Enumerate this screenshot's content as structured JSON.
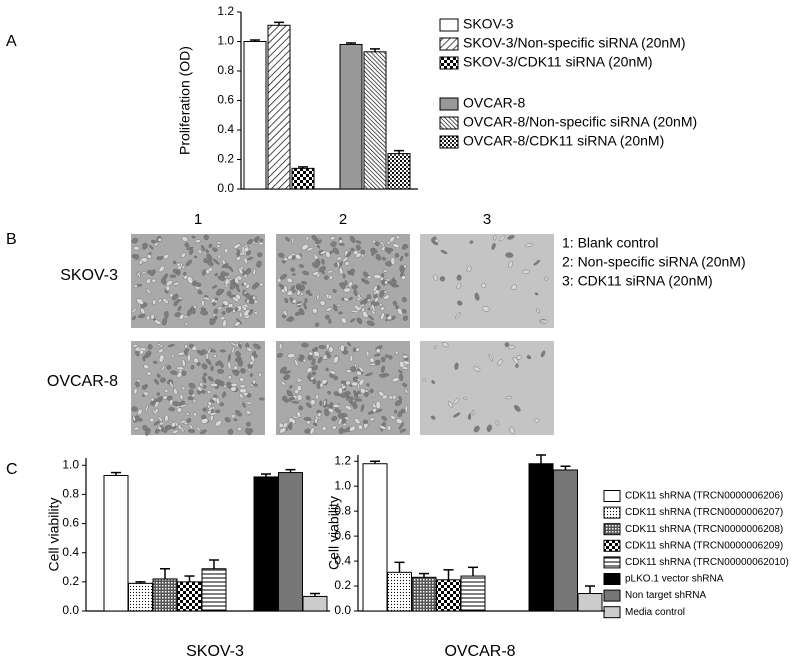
{
  "panel_labels": [
    "A",
    "B",
    "C"
  ],
  "panel_b": {
    "columns": [
      "1",
      "2",
      "3"
    ],
    "rows": [
      "SKOV-3",
      "OVCAR-8"
    ],
    "legend": [
      "1: Blank control",
      "2: Non-specific siRNA (20nM)",
      "3: CDK11 siRNA (20nM)"
    ]
  },
  "chart_data": [
    {
      "type": "bar",
      "ylabel": "Proliferation (OD)",
      "ylim": [
        0,
        1.2
      ],
      "yticks": [
        {
          "value": 0,
          "label": "0.0"
        },
        {
          "value": 0.2,
          "label": "0.2"
        },
        {
          "value": 0.4,
          "label": "0.4"
        },
        {
          "value": 0.6,
          "label": "0.6"
        },
        {
          "value": 0.8,
          "label": "0.8"
        },
        {
          "value": 1,
          "label": "1.0"
        },
        {
          "value": 1.2,
          "label": "1.2"
        }
      ],
      "series": [
        {
          "name": "SKOV-3",
          "color": "white",
          "values": [
            1.0
          ],
          "errors": [
            0.01
          ]
        },
        {
          "name": "SKOV-3/Non-specific siRNA (20nM)",
          "color": "hatch",
          "values": [
            1.11
          ],
          "errors": [
            0.02
          ]
        },
        {
          "name": "SKOV-3/CDK11 siRNA (20nM)",
          "color": "checker",
          "values": [
            0.14
          ],
          "errors": [
            0.01
          ]
        },
        {
          "name": "OVCAR-8",
          "color": "#999999",
          "values": [
            0.98
          ],
          "errors": [
            0.01
          ]
        },
        {
          "name": "OVCAR-8/Non-specific siRNA (20nM)",
          "color": "hatch2",
          "values": [
            0.93
          ],
          "errors": [
            0.02
          ]
        },
        {
          "name": "OVCAR-8/CDK11 siRNA (20nM)",
          "color": "checker2",
          "values": [
            0.24
          ],
          "errors": [
            0.02
          ]
        }
      ]
    },
    {
      "type": "bar",
      "ylabel": "Cell viability",
      "xlabel": "SKOV-3",
      "ylim": [
        0,
        1.05
      ],
      "yticks": [
        {
          "value": 0,
          "label": "0.0"
        },
        {
          "value": 0.2,
          "label": "0.2"
        },
        {
          "value": 0.4,
          "label": "0.4"
        },
        {
          "value": 0.6,
          "label": "0.6"
        },
        {
          "value": 0.8,
          "label": "0.8"
        },
        {
          "value": 1,
          "label": "1.0"
        }
      ],
      "series": [
        {
          "name": "CDK11 shRNA (TRCN0000006206)",
          "color": "white",
          "values": [
            0.93
          ],
          "errors": [
            0.02
          ]
        },
        {
          "name": "CDK11 shRNA (TRCN0000006207)",
          "color": "dots",
          "values": [
            0.19
          ],
          "errors": [
            0.01
          ]
        },
        {
          "name": "CDK11 shRNA (TRCN0000006208)",
          "color": "cross",
          "values": [
            0.22
          ],
          "errors": [
            0.07
          ]
        },
        {
          "name": "CDK11 shRNA (TRCN0000006209)",
          "color": "checker",
          "values": [
            0.2
          ],
          "errors": [
            0.04
          ]
        },
        {
          "name": "CDK11 shRNA (TRCN00000062010)",
          "color": "hlines",
          "values": [
            0.29
          ],
          "errors": [
            0.06
          ]
        },
        {
          "name": "pLKO.1 vector  shRNA",
          "color": "#000000",
          "values": [
            0.92
          ],
          "errors": [
            0.02
          ]
        },
        {
          "name": "Non target shRNA",
          "color": "#777777",
          "values": [
            0.95
          ],
          "errors": [
            0.02
          ]
        },
        {
          "name": "Media control",
          "color": "#cccccc",
          "values": [
            0.1
          ],
          "errors": [
            0.02
          ]
        }
      ]
    },
    {
      "type": "bar",
      "ylabel": "Cell viability",
      "xlabel": "OVCAR-8",
      "ylim": [
        0,
        1.25
      ],
      "yticks": [
        {
          "value": 0,
          "label": "0.0"
        },
        {
          "value": 0.2,
          "label": "0.2"
        },
        {
          "value": 0.4,
          "label": "0.4"
        },
        {
          "value": 0.6,
          "label": "0.6"
        },
        {
          "value": 0.8,
          "label": "0.8"
        },
        {
          "value": 1,
          "label": "1.0"
        },
        {
          "value": 1.2,
          "label": "1.2"
        }
      ],
      "series": [
        {
          "color": "white",
          "values": [
            1.18
          ],
          "errors": [
            0.02
          ]
        },
        {
          "color": "dots",
          "values": [
            0.31
          ],
          "errors": [
            0.08
          ]
        },
        {
          "color": "cross",
          "values": [
            0.27
          ],
          "errors": [
            0.03
          ]
        },
        {
          "color": "checker",
          "values": [
            0.25
          ],
          "errors": [
            0.08
          ]
        },
        {
          "color": "hlines",
          "values": [
            0.28
          ],
          "errors": [
            0.07
          ]
        },
        {
          "color": "#000000",
          "values": [
            1.18
          ],
          "errors": [
            0.07
          ]
        },
        {
          "color": "#777777",
          "values": [
            1.13
          ],
          "errors": [
            0.03
          ]
        },
        {
          "color": "#cccccc",
          "values": [
            0.14
          ],
          "errors": [
            0.06
          ]
        }
      ]
    }
  ]
}
